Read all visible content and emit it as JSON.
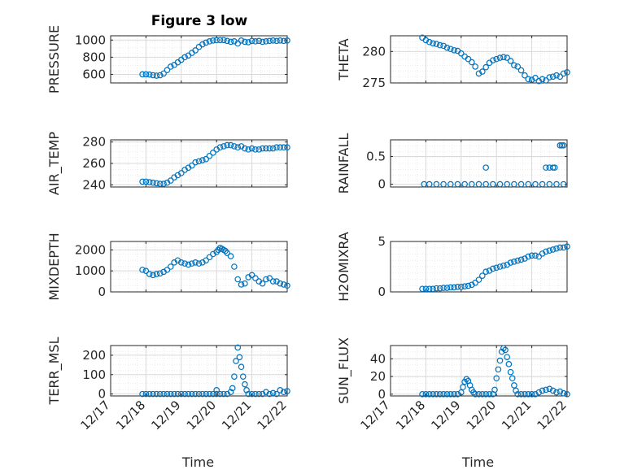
{
  "title": "Figure 3 low",
  "colors": {
    "marker": "#0072BD",
    "axis": "#262626",
    "grid": "#d9d9d9",
    "background": "#ffffff"
  },
  "chart_data": [
    {
      "type": "scatter",
      "ylabel": "PRESSURE",
      "xlabel": "",
      "xlim": [
        0,
        5
      ],
      "ylim": [
        500,
        1050
      ],
      "yticks": [
        600,
        800,
        1000
      ],
      "xticks": [
        0,
        1,
        2,
        3,
        4,
        5
      ],
      "xticklabels": [
        "",
        "",
        "",
        "",
        "",
        ""
      ],
      "grid": true,
      "minor_grid": true,
      "x": [
        0.9,
        1.0,
        1.1,
        1.2,
        1.3,
        1.4,
        1.5,
        1.6,
        1.7,
        1.8,
        1.9,
        2.0,
        2.1,
        2.2,
        2.3,
        2.4,
        2.5,
        2.6,
        2.7,
        2.8,
        2.9,
        3.0,
        3.1,
        3.2,
        3.3,
        3.4,
        3.5,
        3.6,
        3.7,
        3.8,
        3.9,
        4.0,
        4.1,
        4.2,
        4.3,
        4.4,
        4.5,
        4.6,
        4.7,
        4.8,
        4.9,
        5.0
      ],
      "y": [
        600,
        600,
        598,
        590,
        585,
        590,
        610,
        650,
        690,
        710,
        740,
        770,
        800,
        820,
        850,
        880,
        920,
        950,
        970,
        985,
        995,
        998,
        1000,
        1000,
        990,
        980,
        985,
        960,
        995,
        980,
        975,
        990,
        985,
        990,
        980,
        985,
        990,
        995,
        990,
        995,
        990,
        995
      ]
    },
    {
      "type": "scatter",
      "ylabel": "THETA",
      "xlabel": "",
      "xlim": [
        0,
        5
      ],
      "ylim": [
        275,
        282.5
      ],
      "yticks": [
        275,
        280
      ],
      "xticks": [
        0,
        1,
        2,
        3,
        4,
        5
      ],
      "xticklabels": [
        "",
        "",
        "",
        "",
        "",
        ""
      ],
      "grid": true,
      "minor_grid": true,
      "x": [
        0.9,
        1.0,
        1.1,
        1.2,
        1.3,
        1.4,
        1.5,
        1.6,
        1.7,
        1.8,
        1.9,
        2.0,
        2.1,
        2.2,
        2.3,
        2.4,
        2.5,
        2.6,
        2.7,
        2.8,
        2.9,
        3.0,
        3.1,
        3.2,
        3.3,
        3.4,
        3.5,
        3.6,
        3.7,
        3.8,
        3.9,
        4.0,
        4.1,
        4.2,
        4.3,
        4.4,
        4.5,
        4.6,
        4.7,
        4.8,
        4.9,
        5.0
      ],
      "y": [
        282.2,
        281.8,
        281.5,
        281.3,
        281.2,
        281.0,
        280.9,
        280.6,
        280.4,
        280.2,
        280.1,
        279.7,
        279.2,
        278.8,
        278.3,
        277.6,
        276.5,
        276.8,
        277.5,
        278.2,
        278.6,
        278.8,
        279.0,
        279.1,
        279.0,
        278.5,
        277.8,
        277.6,
        277.0,
        276.2,
        275.6,
        275.5,
        275.8,
        275.3,
        275.6,
        275.4,
        275.9,
        276.0,
        276.2,
        276.0,
        276.5,
        276.7
      ]
    },
    {
      "type": "scatter",
      "ylabel": "AIR_TEMP",
      "xlabel": "",
      "xlim": [
        0,
        5
      ],
      "ylim": [
        238,
        282
      ],
      "yticks": [
        240,
        260,
        280
      ],
      "xticks": [
        0,
        1,
        2,
        3,
        4,
        5
      ],
      "xticklabels": [
        "",
        "",
        "",
        "",
        "",
        ""
      ],
      "grid": true,
      "minor_grid": true,
      "x": [
        0.9,
        1.0,
        1.1,
        1.2,
        1.3,
        1.4,
        1.5,
        1.6,
        1.7,
        1.8,
        1.9,
        2.0,
        2.1,
        2.2,
        2.3,
        2.4,
        2.5,
        2.6,
        2.7,
        2.8,
        2.9,
        3.0,
        3.1,
        3.2,
        3.3,
        3.4,
        3.5,
        3.6,
        3.7,
        3.8,
        3.9,
        4.0,
        4.1,
        4.2,
        4.3,
        4.4,
        4.5,
        4.6,
        4.7,
        4.8,
        4.9,
        5.0
      ],
      "y": [
        243,
        243,
        242.5,
        242,
        241.5,
        241,
        241,
        242,
        244,
        247,
        249,
        251,
        254,
        256,
        258,
        261,
        262,
        263,
        264,
        267,
        270,
        273,
        275,
        276,
        277,
        277,
        276,
        275,
        276,
        274,
        273,
        274,
        273,
        273,
        274,
        274,
        274,
        274,
        275,
        275,
        275,
        275
      ]
    },
    {
      "type": "scatter",
      "ylabel": "RAINFALL",
      "xlabel": "",
      "xlim": [
        0,
        5
      ],
      "ylim": [
        -0.05,
        0.8
      ],
      "yticks": [
        0,
        0.5
      ],
      "xticks": [
        0,
        1,
        2,
        3,
        4,
        5
      ],
      "xticklabels": [
        "",
        "",
        "",
        "",
        "",
        ""
      ],
      "grid": true,
      "minor_grid": true,
      "x": [
        0.95,
        1.1,
        1.3,
        1.5,
        1.7,
        1.9,
        2.1,
        2.3,
        2.5,
        2.7,
        2.9,
        3.1,
        3.3,
        3.5,
        3.7,
        3.9,
        4.1,
        4.3,
        4.5,
        4.7,
        4.9,
        2.7,
        4.4,
        4.5,
        4.6,
        4.65,
        4.8,
        4.85,
        4.9
      ],
      "y": [
        0,
        0,
        0,
        0,
        0,
        0,
        0,
        0,
        0,
        0,
        0,
        0,
        0,
        0,
        0,
        0,
        0,
        0,
        0,
        0,
        0,
        0.3,
        0.3,
        0.3,
        0.3,
        0.3,
        0.7,
        0.7,
        0.7
      ]
    },
    {
      "type": "scatter",
      "ylabel": "MIXDEPTH",
      "xlabel": "",
      "xlim": [
        0,
        5
      ],
      "ylim": [
        0,
        2400
      ],
      "yticks": [
        0,
        1000,
        2000
      ],
      "xticks": [
        0,
        1,
        2,
        3,
        4,
        5
      ],
      "xticklabels": [
        "",
        "",
        "",
        "",
        "",
        ""
      ],
      "grid": true,
      "minor_grid": true,
      "x": [
        0.9,
        1.0,
        1.1,
        1.2,
        1.3,
        1.4,
        1.5,
        1.6,
        1.7,
        1.8,
        1.9,
        2.0,
        2.1,
        2.2,
        2.3,
        2.4,
        2.5,
        2.6,
        2.7,
        2.8,
        2.9,
        3.0,
        3.05,
        3.1,
        3.15,
        3.2,
        3.25,
        3.3,
        3.4,
        3.5,
        3.6,
        3.7,
        3.8,
        3.9,
        4.0,
        4.1,
        4.2,
        4.3,
        4.4,
        4.5,
        4.6,
        4.7,
        4.8,
        4.9,
        5.0
      ],
      "y": [
        1050,
        1000,
        850,
        800,
        850,
        880,
        950,
        1050,
        1200,
        1400,
        1500,
        1400,
        1350,
        1300,
        1350,
        1400,
        1350,
        1400,
        1500,
        1650,
        1800,
        1900,
        2000,
        2100,
        2050,
        2000,
        1950,
        1850,
        1700,
        1200,
        600,
        350,
        400,
        700,
        800,
        650,
        500,
        400,
        600,
        650,
        500,
        500,
        400,
        350,
        300
      ]
    },
    {
      "type": "scatter",
      "ylabel": "H2OMIXRA",
      "xlabel": "",
      "xlim": [
        0,
        5
      ],
      "ylim": [
        0,
        5
      ],
      "yticks": [
        0,
        5
      ],
      "xticks": [
        0,
        1,
        2,
        3,
        4,
        5
      ],
      "xticklabels": [
        "",
        "",
        "",
        "",
        "",
        ""
      ],
      "grid": true,
      "minor_grid": true,
      "x": [
        0.9,
        1.0,
        1.1,
        1.2,
        1.3,
        1.4,
        1.5,
        1.6,
        1.7,
        1.8,
        1.9,
        2.0,
        2.1,
        2.2,
        2.3,
        2.4,
        2.5,
        2.6,
        2.7,
        2.8,
        2.9,
        3.0,
        3.1,
        3.2,
        3.3,
        3.4,
        3.5,
        3.6,
        3.7,
        3.8,
        3.9,
        4.0,
        4.1,
        4.2,
        4.3,
        4.4,
        4.5,
        4.6,
        4.7,
        4.8,
        4.9,
        5.0
      ],
      "y": [
        0.3,
        0.3,
        0.3,
        0.3,
        0.35,
        0.35,
        0.4,
        0.4,
        0.45,
        0.45,
        0.5,
        0.5,
        0.55,
        0.6,
        0.7,
        0.9,
        1.2,
        1.6,
        2.0,
        2.1,
        2.3,
        2.4,
        2.5,
        2.6,
        2.7,
        2.9,
        3.0,
        3.1,
        3.2,
        3.3,
        3.5,
        3.6,
        3.6,
        3.5,
        3.8,
        4.0,
        4.1,
        4.2,
        4.3,
        4.4,
        4.4,
        4.5
      ]
    },
    {
      "type": "scatter",
      "ylabel": "TERR_MSL",
      "xlabel": "Time",
      "xlim": [
        0,
        5
      ],
      "ylim": [
        -10,
        250
      ],
      "yticks": [
        0,
        100,
        200
      ],
      "xticks": [
        0,
        1,
        2,
        3,
        4,
        5
      ],
      "xticklabels": [
        "12/17",
        "12/18",
        "12/19",
        "12/20",
        "12/21",
        "12/22"
      ],
      "grid": true,
      "minor_grid": true,
      "x": [
        0.9,
        1.0,
        1.1,
        1.2,
        1.3,
        1.4,
        1.5,
        1.6,
        1.7,
        1.8,
        1.9,
        2.0,
        2.1,
        2.2,
        2.3,
        2.4,
        2.5,
        2.6,
        2.7,
        2.8,
        2.9,
        3.0,
        3.1,
        3.2,
        3.3,
        3.4,
        3.45,
        3.5,
        3.55,
        3.6,
        3.65,
        3.7,
        3.75,
        3.8,
        3.85,
        3.9,
        4.0,
        4.1,
        4.2,
        4.3,
        4.4,
        4.5,
        4.6,
        4.7,
        4.8,
        4.9,
        5.0,
        3.0
      ],
      "y": [
        0,
        0,
        0,
        0,
        0,
        0,
        0,
        0,
        0,
        0,
        0,
        0,
        0,
        0,
        0,
        0,
        0,
        0,
        0,
        0,
        0,
        0,
        0,
        0,
        0,
        10,
        30,
        90,
        170,
        240,
        190,
        140,
        90,
        50,
        20,
        0,
        0,
        0,
        0,
        0,
        10,
        0,
        5,
        0,
        20,
        10,
        15,
        20
      ]
    },
    {
      "type": "scatter",
      "ylabel": "SUN_FLUX",
      "xlabel": "Time",
      "xlim": [
        0,
        5
      ],
      "ylim": [
        -2,
        55
      ],
      "yticks": [
        0,
        20,
        40
      ],
      "xticks": [
        0,
        1,
        2,
        3,
        4,
        5
      ],
      "xticklabels": [
        "12/17",
        "12/18",
        "12/19",
        "12/20",
        "12/21",
        "12/22"
      ],
      "grid": true,
      "minor_grid": true,
      "x": [
        0.9,
        1.0,
        1.1,
        1.2,
        1.3,
        1.4,
        1.5,
        1.6,
        1.7,
        1.8,
        1.9,
        2.0,
        2.05,
        2.1,
        2.15,
        2.2,
        2.25,
        2.3,
        2.35,
        2.4,
        2.5,
        2.6,
        2.7,
        2.8,
        2.9,
        2.95,
        3.0,
        3.05,
        3.1,
        3.15,
        3.2,
        3.25,
        3.3,
        3.35,
        3.4,
        3.45,
        3.5,
        3.55,
        3.6,
        3.7,
        3.8,
        3.9,
        4.0,
        4.1,
        4.2,
        4.3,
        4.4,
        4.5,
        4.6,
        4.7,
        4.8,
        4.9,
        5.0
      ],
      "y": [
        0,
        0,
        0,
        0,
        0,
        0,
        0,
        0,
        0,
        0,
        0,
        2,
        8,
        14,
        17,
        15,
        10,
        5,
        2,
        0,
        0,
        0,
        0,
        0,
        0,
        5,
        18,
        28,
        38,
        48,
        52,
        50,
        42,
        34,
        25,
        18,
        10,
        4,
        0,
        0,
        0,
        0,
        0,
        0,
        2,
        4,
        5,
        6,
        4,
        2,
        3,
        1,
        0
      ]
    }
  ]
}
